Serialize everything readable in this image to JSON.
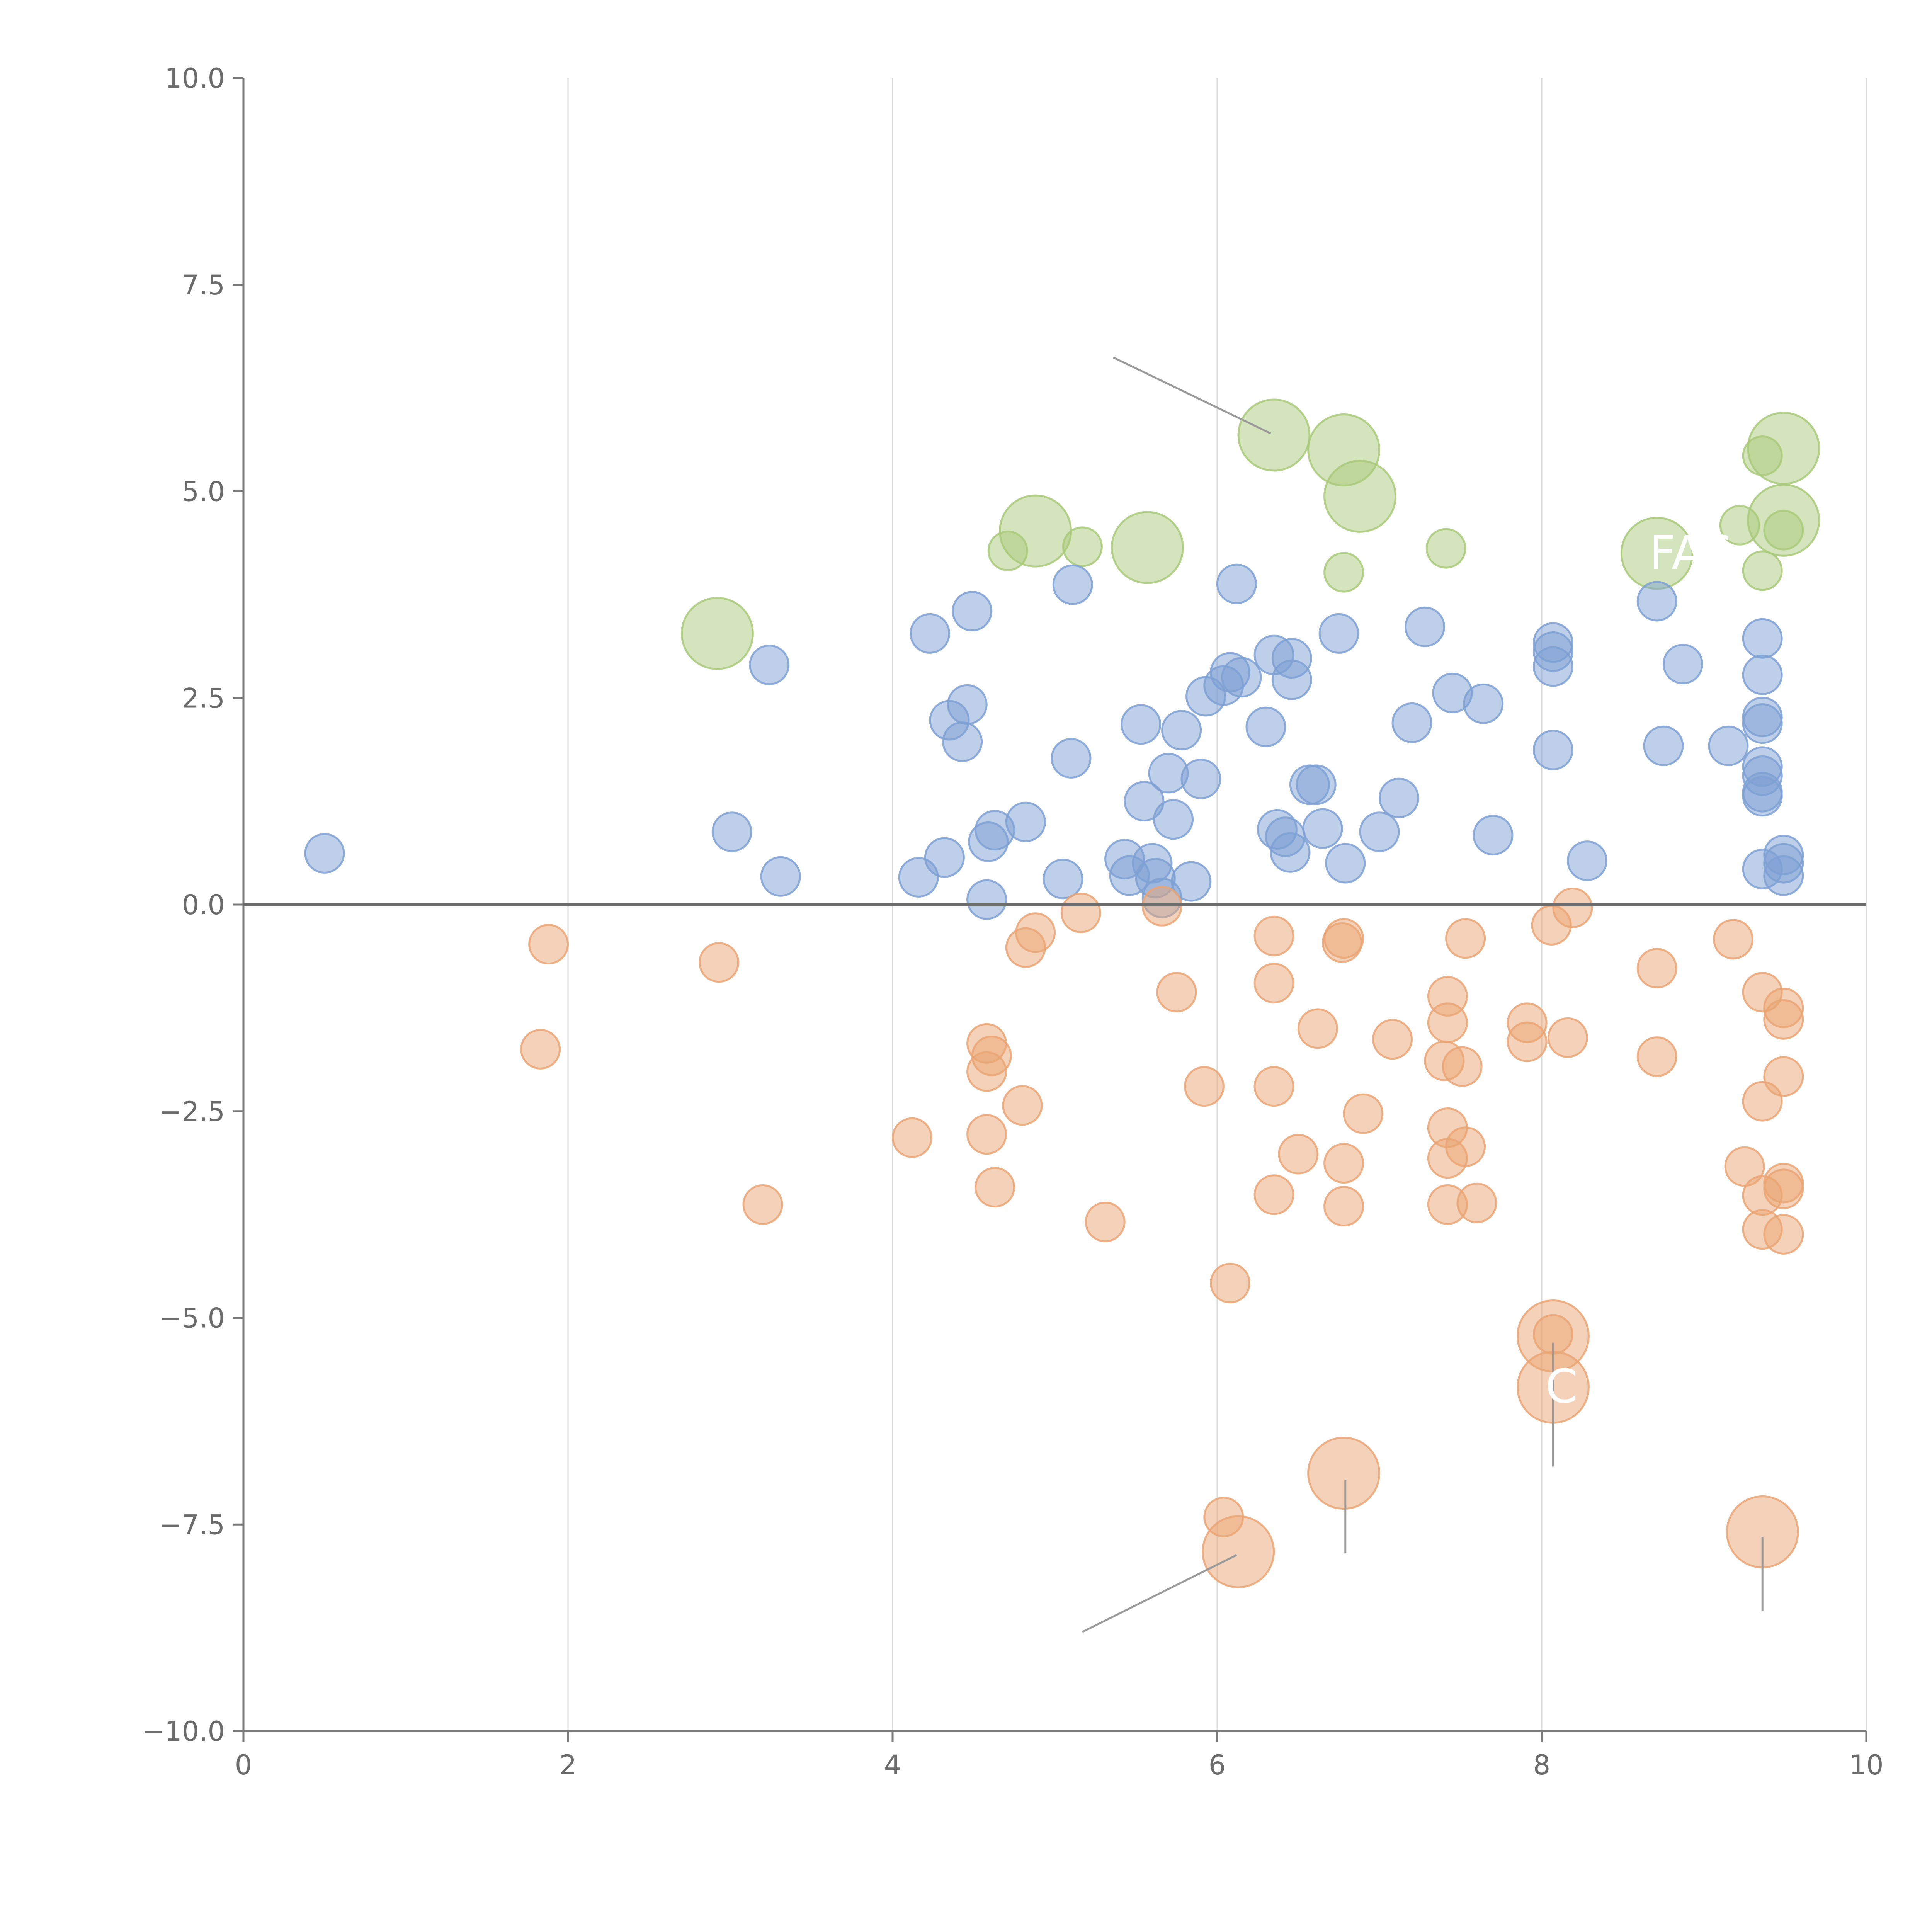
{
  "chart_data": {
    "type": "scatter",
    "title": "",
    "xlabel": "",
    "ylabel": "",
    "xlim": [
      0,
      10
    ],
    "ylim": [
      -10,
      10
    ],
    "grid": {
      "x": true,
      "y": false
    },
    "zero_line": true,
    "legend": "none",
    "x_ticks": [
      "0",
      "2",
      "4",
      "6",
      "8",
      "10"
    ],
    "y_ticks": [
      "10.0",
      "7.5",
      "5.0",
      "2.5",
      "0.0",
      "−2.5",
      "−5.0",
      "−7.5",
      "−10.0"
    ],
    "series": [
      {
        "name": "green",
        "color": "#a9c97a",
        "points": [
          [
            2.92,
            3.28,
            1
          ],
          [
            4.71,
            4.28,
            0.5
          ],
          [
            4.88,
            4.52,
            1
          ],
          [
            5.17,
            4.33,
            0.5
          ],
          [
            5.57,
            4.32,
            1
          ],
          [
            6.35,
            5.68,
            1
          ],
          [
            6.78,
            5.5,
            1
          ],
          [
            6.88,
            4.94,
            1
          ],
          [
            6.78,
            4.02,
            0.5
          ],
          [
            7.41,
            4.31,
            0.5
          ],
          [
            8.71,
            4.25,
            1
          ],
          [
            9.22,
            4.59,
            0.5
          ],
          [
            9.36,
            5.43,
            0.5
          ],
          [
            9.49,
            5.52,
            1
          ],
          [
            9.49,
            4.65,
            1
          ],
          [
            9.36,
            4.04,
            0.5
          ],
          [
            9.49,
            4.53,
            0.5
          ]
        ]
      },
      {
        "name": "blue",
        "color": "#7ea0d4",
        "points": [
          [
            0.5,
            0.62,
            0.5
          ],
          [
            3.01,
            0.88,
            0.5
          ],
          [
            3.24,
            2.9,
            0.5
          ],
          [
            3.31,
            0.34,
            0.5
          ],
          [
            4.16,
            0.33,
            0.5
          ],
          [
            4.23,
            3.28,
            0.5
          ],
          [
            4.32,
            0.57,
            0.5
          ],
          [
            4.35,
            2.23,
            0.5
          ],
          [
            4.43,
            1.97,
            0.5
          ],
          [
            4.46,
            2.42,
            0.5
          ],
          [
            4.49,
            3.55,
            0.5
          ],
          [
            4.58,
            0.06,
            0.5
          ],
          [
            4.59,
            0.76,
            0.5
          ],
          [
            4.63,
            0.9,
            0.5
          ],
          [
            4.82,
            1.0,
            0.5
          ],
          [
            5.05,
            0.31,
            0.5
          ],
          [
            5.1,
            1.77,
            0.5
          ],
          [
            5.11,
            3.87,
            0.5
          ],
          [
            5.43,
            0.55,
            0.5
          ],
          [
            5.46,
            0.35,
            0.5
          ],
          [
            5.53,
            2.18,
            0.5
          ],
          [
            5.55,
            1.25,
            0.5
          ],
          [
            5.6,
            0.5,
            0.5
          ],
          [
            5.62,
            0.32,
            0.5
          ],
          [
            5.66,
            0.08,
            0.5
          ],
          [
            5.7,
            1.59,
            0.5
          ],
          [
            5.73,
            1.03,
            0.5
          ],
          [
            5.78,
            2.11,
            0.5
          ],
          [
            5.84,
            0.28,
            0.5
          ],
          [
            5.9,
            1.52,
            0.5
          ],
          [
            5.93,
            2.52,
            0.5
          ],
          [
            6.04,
            2.65,
            0.5
          ],
          [
            6.08,
            2.81,
            0.5
          ],
          [
            6.12,
            3.88,
            0.5
          ],
          [
            6.15,
            2.75,
            0.5
          ],
          [
            6.3,
            2.15,
            0.5
          ],
          [
            6.35,
            3.02,
            0.5
          ],
          [
            6.37,
            0.91,
            0.5
          ],
          [
            6.42,
            0.82,
            0.5
          ],
          [
            6.45,
            0.63,
            0.5
          ],
          [
            6.46,
            2.98,
            0.5
          ],
          [
            6.46,
            2.72,
            0.5
          ],
          [
            6.57,
            1.45,
            0.5
          ],
          [
            6.61,
            1.45,
            0.5
          ],
          [
            6.65,
            0.92,
            0.5
          ],
          [
            6.75,
            3.28,
            0.5
          ],
          [
            6.79,
            0.5,
            0.5
          ],
          [
            7.0,
            0.88,
            0.5
          ],
          [
            7.12,
            1.29,
            0.5
          ],
          [
            7.2,
            2.2,
            0.5
          ],
          [
            7.28,
            3.36,
            0.5
          ],
          [
            7.45,
            2.56,
            0.5
          ],
          [
            7.64,
            2.43,
            0.5
          ],
          [
            7.7,
            0.84,
            0.5
          ],
          [
            8.07,
            3.17,
            0.5
          ],
          [
            8.07,
            3.06,
            0.5
          ],
          [
            8.07,
            2.88,
            0.5
          ],
          [
            8.07,
            1.87,
            0.5
          ],
          [
            8.28,
            0.53,
            0.5
          ],
          [
            8.71,
            3.67,
            0.5
          ],
          [
            8.75,
            1.92,
            0.5
          ],
          [
            8.87,
            2.91,
            0.5
          ],
          [
            9.15,
            1.92,
            0.5
          ],
          [
            9.36,
            3.22,
            0.5
          ],
          [
            9.36,
            2.78,
            0.5
          ],
          [
            9.36,
            2.27,
            0.5
          ],
          [
            9.36,
            2.19,
            0.5
          ],
          [
            9.36,
            1.67,
            0.5
          ],
          [
            9.36,
            1.56,
            0.5
          ],
          [
            9.36,
            1.36,
            0.5
          ],
          [
            9.36,
            1.31,
            0.5
          ],
          [
            9.36,
            0.43,
            0.5
          ],
          [
            9.49,
            0.6,
            0.5
          ],
          [
            9.49,
            0.5,
            0.5
          ],
          [
            9.49,
            0.35,
            0.5
          ]
        ]
      },
      {
        "name": "orange",
        "color": "#eaa574",
        "points": [
          [
            1.83,
            -1.75,
            0.5
          ],
          [
            1.88,
            -0.48,
            0.5
          ],
          [
            2.93,
            -0.7,
            0.5
          ],
          [
            3.2,
            -3.63,
            0.5
          ],
          [
            4.12,
            -2.82,
            0.5
          ],
          [
            4.58,
            -1.68,
            0.5
          ],
          [
            4.58,
            -2.02,
            0.5
          ],
          [
            4.58,
            -2.78,
            0.5
          ],
          [
            4.61,
            -1.83,
            0.5
          ],
          [
            4.63,
            -3.42,
            0.5
          ],
          [
            4.8,
            -2.43,
            0.5
          ],
          [
            4.82,
            -0.52,
            0.5
          ],
          [
            4.88,
            -0.34,
            0.5
          ],
          [
            5.16,
            -0.1,
            0.5
          ],
          [
            5.31,
            -3.84,
            0.5
          ],
          [
            5.66,
            -0.02,
            0.5
          ],
          [
            5.75,
            -1.06,
            0.5
          ],
          [
            5.92,
            -2.2,
            0.5
          ],
          [
            6.04,
            -7.41,
            0.5
          ],
          [
            6.08,
            -4.58,
            0.5
          ],
          [
            6.13,
            -7.83,
            1
          ],
          [
            6.35,
            -0.38,
            0.5
          ],
          [
            6.35,
            -0.95,
            0.5
          ],
          [
            6.35,
            -2.2,
            0.5
          ],
          [
            6.35,
            -3.51,
            0.5
          ],
          [
            6.5,
            -3.02,
            0.5
          ],
          [
            6.62,
            -1.5,
            0.5
          ],
          [
            6.77,
            -0.46,
            0.5
          ],
          [
            6.78,
            -0.41,
            0.5
          ],
          [
            6.78,
            -3.13,
            0.5
          ],
          [
            6.78,
            -3.65,
            0.5
          ],
          [
            6.78,
            -6.88,
            1
          ],
          [
            6.9,
            -2.53,
            0.5
          ],
          [
            7.08,
            -1.63,
            0.5
          ],
          [
            7.4,
            -1.89,
            0.5
          ],
          [
            7.42,
            -1.11,
            0.5
          ],
          [
            7.42,
            -1.43,
            0.5
          ],
          [
            7.42,
            -2.7,
            0.5
          ],
          [
            7.42,
            -3.07,
            0.5
          ],
          [
            7.42,
            -3.63,
            0.5
          ],
          [
            7.51,
            -1.96,
            0.5
          ],
          [
            7.53,
            -0.41,
            0.5
          ],
          [
            7.53,
            -2.93,
            0.5
          ],
          [
            7.6,
            -3.61,
            0.5
          ],
          [
            7.91,
            -1.43,
            0.5
          ],
          [
            7.91,
            -1.66,
            0.5
          ],
          [
            8.06,
            -0.25,
            0.5
          ],
          [
            8.07,
            -5.22,
            1
          ],
          [
            8.07,
            -5.2,
            0.5
          ],
          [
            8.07,
            -5.84,
            1
          ],
          [
            8.16,
            -1.61,
            0.5
          ],
          [
            8.19,
            -0.04,
            0.5
          ],
          [
            8.71,
            -0.77,
            0.5
          ],
          [
            8.71,
            -1.84,
            0.5
          ],
          [
            9.18,
            -0.42,
            0.5
          ],
          [
            9.25,
            -3.17,
            0.5
          ],
          [
            9.36,
            -1.06,
            0.5
          ],
          [
            9.36,
            -2.38,
            0.5
          ],
          [
            9.36,
            -3.52,
            0.5
          ],
          [
            9.36,
            -3.93,
            0.5
          ],
          [
            9.36,
            -7.59,
            1
          ],
          [
            9.49,
            -1.25,
            0.5
          ],
          [
            9.49,
            -1.39,
            0.5
          ],
          [
            9.49,
            -2.08,
            0.5
          ],
          [
            9.49,
            -3.37,
            0.5
          ],
          [
            9.49,
            -3.44,
            0.5
          ],
          [
            9.49,
            -3.99,
            0.5
          ]
        ]
      }
    ],
    "annotations": [
      {
        "x": 8.71,
        "y": 4.25,
        "text": "FAS",
        "lx": 8.7,
        "ly": 4.25,
        "ex": 8.72,
        "ey": 3.6
      },
      {
        "x": 8.07,
        "y": -5.84,
        "text": "C",
        "lx": 8.07,
        "ly": -5.3,
        "ex": 8.07,
        "ey": -6.8
      }
    ],
    "leaders": [
      {
        "x1": 5.36,
        "y1": 6.62,
        "x2": 6.33,
        "y2": 5.7
      },
      {
        "x1": 5.17,
        "y1": -8.8,
        "x2": 6.12,
        "y2": -7.87
      },
      {
        "x1": 6.79,
        "y1": -6.96,
        "x2": 6.79,
        "y2": -7.85
      },
      {
        "x1": 9.36,
        "y1": -7.65,
        "x2": 9.36,
        "y2": -8.55
      },
      {
        "x1": 8.07,
        "y1": -5.3,
        "x2": 8.07,
        "y2": -6.8
      }
    ]
  }
}
